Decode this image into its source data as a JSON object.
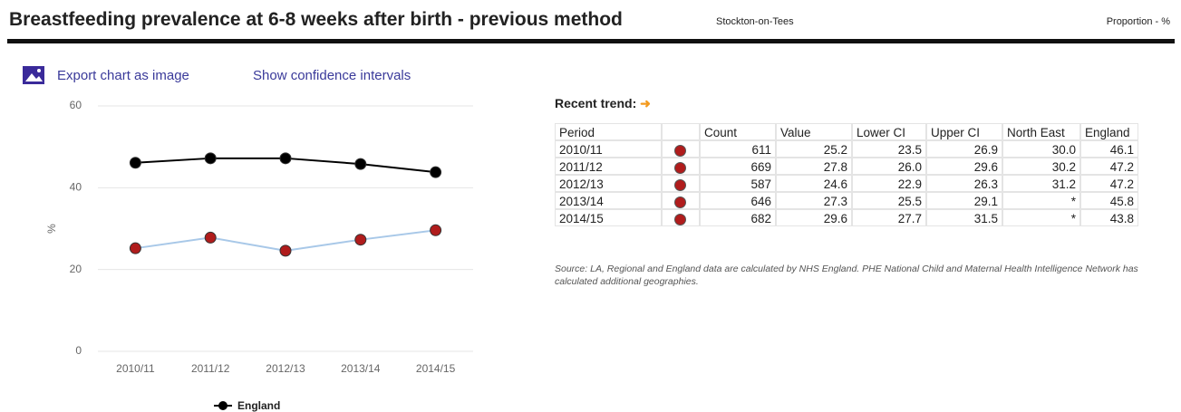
{
  "header": {
    "title": "Breastfeeding prevalence at 6-8 weeks after birth - previous method",
    "area": "Stockton-on-Tees",
    "unit": "Proportion - %"
  },
  "toolbar": {
    "export": "Export chart as image",
    "confidence": "Show confidence intervals"
  },
  "chart_data": {
    "type": "line",
    "y_label": "%",
    "categories": [
      "2010/11",
      "2011/12",
      "2012/13",
      "2013/14",
      "2014/15"
    ],
    "series": [
      {
        "name": "England",
        "color": "#000000",
        "values": [
          46.1,
          47.2,
          47.2,
          45.8,
          43.8
        ]
      },
      {
        "color": "#a8c8e8",
        "marker_color": "#b01c1c",
        "values": [
          25.2,
          27.8,
          24.6,
          27.3,
          29.6
        ]
      }
    ],
    "ylim": [
      0,
      60
    ],
    "yticks": [
      0,
      20,
      40,
      60
    ],
    "grid": true
  },
  "trend": {
    "label": "Recent trend:"
  },
  "table": {
    "columns": [
      "Period",
      "Count",
      "Value",
      "Lower CI",
      "Upper CI",
      "North East",
      "England"
    ],
    "rows": [
      [
        "2010/11",
        "611",
        "25.2",
        "23.5",
        "26.9",
        "30.0",
        "46.1"
      ],
      [
        "2011/12",
        "669",
        "27.8",
        "26.0",
        "29.6",
        "30.2",
        "47.2"
      ],
      [
        "2012/13",
        "587",
        "24.6",
        "22.9",
        "26.3",
        "31.2",
        "47.2"
      ],
      [
        "2013/14",
        "646",
        "27.3",
        "25.5",
        "29.1",
        "*",
        "45.8"
      ],
      [
        "2014/15",
        "682",
        "29.6",
        "27.7",
        "31.5",
        "*",
        "43.8"
      ]
    ],
    "source": "Source: LA, Regional and England data are calculated by NHS England. PHE National Child and Maternal Health Intelligence Network has calculated additional geographies."
  }
}
